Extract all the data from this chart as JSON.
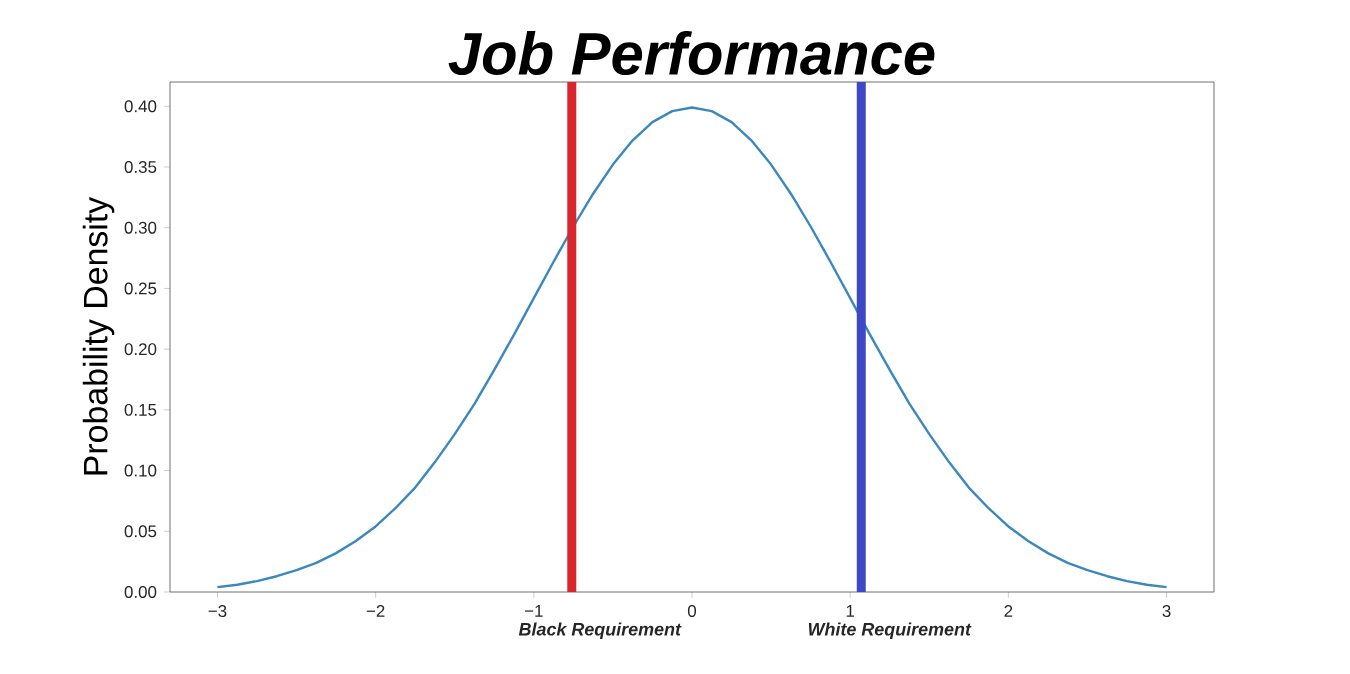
{
  "chart_data": {
    "type": "line",
    "title": "Job Performance",
    "ylabel": "Probability Density",
    "x": [
      -3,
      -2.875,
      -2.75,
      -2.625,
      -2.5,
      -2.375,
      -2.25,
      -2.125,
      -2,
      -1.875,
      -1.75,
      -1.625,
      -1.5,
      -1.375,
      -1.25,
      -1.125,
      -1,
      -0.875,
      -0.75,
      -0.625,
      -0.5,
      -0.375,
      -0.25,
      -0.125,
      0,
      0.125,
      0.25,
      0.375,
      0.5,
      0.625,
      0.75,
      0.875,
      1,
      1.125,
      1.25,
      1.375,
      1.5,
      1.625,
      1.75,
      1.875,
      2,
      2.125,
      2.25,
      2.375,
      2.5,
      2.625,
      2.75,
      2.875,
      3
    ],
    "series": [
      {
        "color": "#3a88bd",
        "values": [
          0.004,
          0.006,
          0.009,
          0.013,
          0.018,
          0.024,
          0.032,
          0.042,
          0.054,
          0.069,
          0.086,
          0.107,
          0.13,
          0.155,
          0.183,
          0.212,
          0.242,
          0.272,
          0.301,
          0.328,
          0.352,
          0.372,
          0.387,
          0.396,
          0.399,
          0.396,
          0.387,
          0.372,
          0.352,
          0.328,
          0.301,
          0.272,
          0.242,
          0.212,
          0.183,
          0.155,
          0.13,
          0.107,
          0.086,
          0.069,
          0.054,
          0.042,
          0.032,
          0.024,
          0.018,
          0.013,
          0.009,
          0.006,
          0.004
        ]
      }
    ],
    "xlim": [
      -3.3,
      3.3
    ],
    "ylim": [
      0,
      0.42
    ],
    "xticks": [
      {
        "value": -3,
        "label": "−3"
      },
      {
        "value": -2,
        "label": "−2"
      },
      {
        "value": -1,
        "label": "−1"
      },
      0,
      1,
      2,
      3
    ],
    "yticks": [
      {
        "value": 0,
        "label": "0.00"
      },
      {
        "value": 0.05,
        "label": "0.05"
      },
      {
        "value": 0.1,
        "label": "0.10"
      },
      {
        "value": 0.15,
        "label": "0.15"
      },
      {
        "value": 0.2,
        "label": "0.20"
      },
      {
        "value": 0.25,
        "label": "0.25"
      },
      {
        "value": 0.3,
        "label": "0.30"
      },
      {
        "value": 0.35,
        "label": "0.35"
      },
      {
        "value": 0.4,
        "label": "0.40"
      }
    ],
    "ref_lines": [
      {
        "axis": "x",
        "value": -0.76,
        "label": "Black Requirement",
        "color": "#d9262e"
      },
      {
        "axis": "x",
        "value": 1.07,
        "label": "White Requirement",
        "color": "#3f48c4"
      }
    ],
    "grid": false,
    "marker": "none",
    "line_style": "solid"
  }
}
